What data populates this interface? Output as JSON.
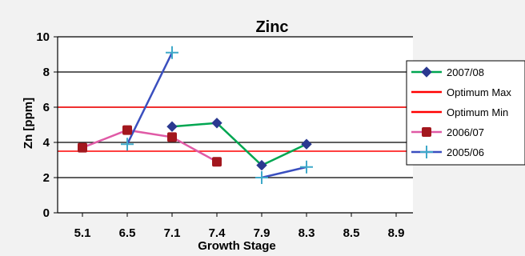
{
  "chart_data": {
    "type": "line",
    "title": "Zinc",
    "xlabel": "Growth Stage",
    "ylabel": "Zn [ppm]",
    "categories": [
      "5.1",
      "6.5",
      "7.1",
      "7.4",
      "7.9",
      "8.3",
      "8.5",
      "8.9"
    ],
    "ylim": [
      0,
      10
    ],
    "yticks": [
      0,
      2,
      4,
      6,
      8,
      10
    ],
    "grid": true,
    "legend_position": "right",
    "series": [
      {
        "name": "2007/08",
        "color": "#00a651",
        "marker": "diamond",
        "marker_color": "#2b3990",
        "values": [
          null,
          null,
          4.9,
          5.1,
          2.7,
          3.9,
          null,
          null
        ]
      },
      {
        "name": "Optimum Max",
        "color": "#ff0000",
        "marker": "none",
        "constant": 6.0
      },
      {
        "name": "Optimum Min",
        "color": "#ff0000",
        "marker": "none",
        "constant": 3.5
      },
      {
        "name": "2006/07",
        "color": "#e05aa6",
        "marker": "square",
        "marker_color": "#a3171e",
        "values": [
          3.7,
          4.7,
          4.3,
          2.9,
          null,
          null,
          null,
          null
        ]
      },
      {
        "name": "2005/06",
        "color": "#3a4fbf",
        "marker": "plus",
        "marker_color": "#3fa9c9",
        "values": [
          null,
          3.9,
          9.1,
          null,
          2.0,
          2.6,
          null,
          null
        ],
        "line_segments": [
          [
            1,
            2
          ],
          [
            4,
            5
          ]
        ]
      }
    ]
  }
}
